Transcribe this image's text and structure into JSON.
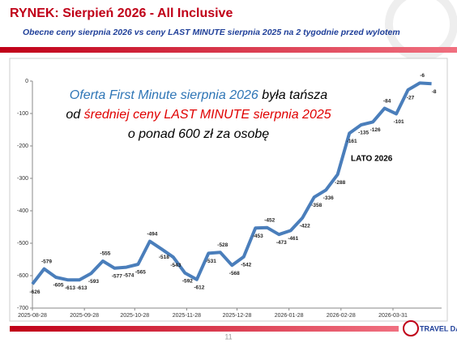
{
  "title": "RYNEK: Sierpień 2026 - All Inclusive",
  "subtitle": "Obecne ceny sierpnia 2026 vs ceny LAST MINUTE sierpnia 2025 na 2 tygodnie przed wylotem",
  "page_number": "11",
  "logo": "TRAVEL DATA",
  "chart_data": {
    "type": "line",
    "x": [
      "2025-08-28",
      "2025-09-04",
      "2025-09-11",
      "2025-09-18",
      "2025-09-25",
      "2025-10-02",
      "2025-10-09",
      "2025-10-16",
      "2025-10-23",
      "2025-10-30",
      "2025-11-06",
      "2025-11-13",
      "2025-11-20",
      "2025-11-27",
      "2025-12-04",
      "2025-12-11",
      "2025-12-18",
      "2025-12-25",
      "2026-01-01",
      "2026-01-08",
      "2026-01-15",
      "2026-01-22",
      "2026-01-29",
      "2026-02-05",
      "2026-02-12",
      "2026-02-19",
      "2026-02-26",
      "2026-03-05",
      "2026-03-12",
      "2026-03-19",
      "2026-03-26",
      "2026-04-02",
      "2026-04-09",
      "2026-04-16",
      "2026-04-23"
    ],
    "series": [
      {
        "color": "#4a7ebb",
        "values": [
          -626,
          -579,
          -605,
          -613,
          -613,
          -593,
          -555,
          -577,
          -574,
          -565,
          -494,
          -518,
          -543,
          -592,
          -612,
          -531,
          -528,
          -568,
          -542,
          -453,
          -452,
          -473,
          -461,
          -422,
          -358,
          -336,
          -288,
          -161,
          -135,
          -126,
          -84,
          -101,
          -27,
          -6,
          -8
        ]
      }
    ],
    "xlim": [
      "2025-08-28",
      "2026-04-29"
    ],
    "xticks": [
      "2025-08-28",
      "2025-09-28",
      "2025-10-28",
      "2025-11-28",
      "2025-12-28",
      "2026-01-28",
      "2026-02-28",
      "2026-03-31"
    ],
    "ylim": [
      -700,
      0
    ],
    "yticks": [
      0,
      -100,
      -200,
      -300,
      -400,
      -500,
      -600,
      -700
    ],
    "annotations": [
      {
        "text": "LATO 2026",
        "color": "#000000"
      },
      {
        "lines": [
          [
            {
              "text": "Oferta First Minute sierpnia 2026",
              "color": "#2e75b6"
            },
            {
              "text": " była tańsza",
              "color": "#000000"
            }
          ],
          [
            {
              "text": "od ",
              "color": "#000000"
            },
            {
              "text": "średniej ceny LAST MINUTE sierpnia 2025",
              "color": "#e00000"
            }
          ],
          [
            {
              "text": "o ponad 600 zł za osobę",
              "color": "#000000"
            }
          ]
        ]
      }
    ]
  }
}
